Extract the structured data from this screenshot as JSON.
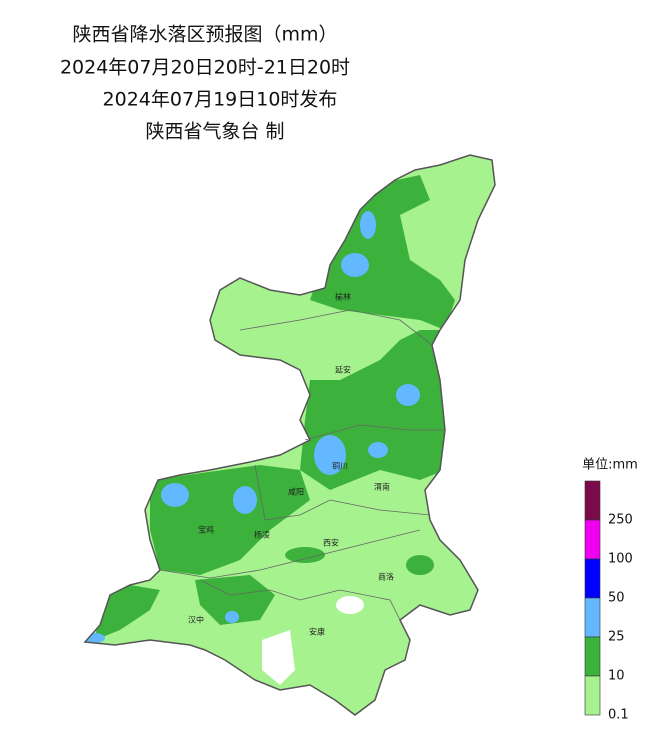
{
  "header": {
    "title": "陕西省降水落区预报图（mm）",
    "period": "2024年07月20日20时-21日20时",
    "issued": "2024年07月19日10时发布",
    "issuer": "陕西省气象台 制"
  },
  "cities": [
    {
      "label": "榆林"
    },
    {
      "label": "延安"
    },
    {
      "label": "铜川"
    },
    {
      "label": "渭南"
    },
    {
      "label": "咸阳"
    },
    {
      "label": "宝鸡"
    },
    {
      "label": "杨凌"
    },
    {
      "label": "西安"
    },
    {
      "label": "商洛"
    },
    {
      "label": "汉中"
    },
    {
      "label": "安康"
    }
  ],
  "legend": {
    "title": "单位:mm",
    "items": [
      {
        "label": "250",
        "color": "#7b0a4a"
      },
      {
        "label": "100",
        "color": "#f000f0"
      },
      {
        "label": "50",
        "color": "#0000ff"
      },
      {
        "label": "25",
        "color": "#63b8ff"
      },
      {
        "label": "10",
        "color": "#3cb23c"
      },
      {
        "label": "0.1",
        "color": "#a6f28f"
      }
    ]
  }
}
